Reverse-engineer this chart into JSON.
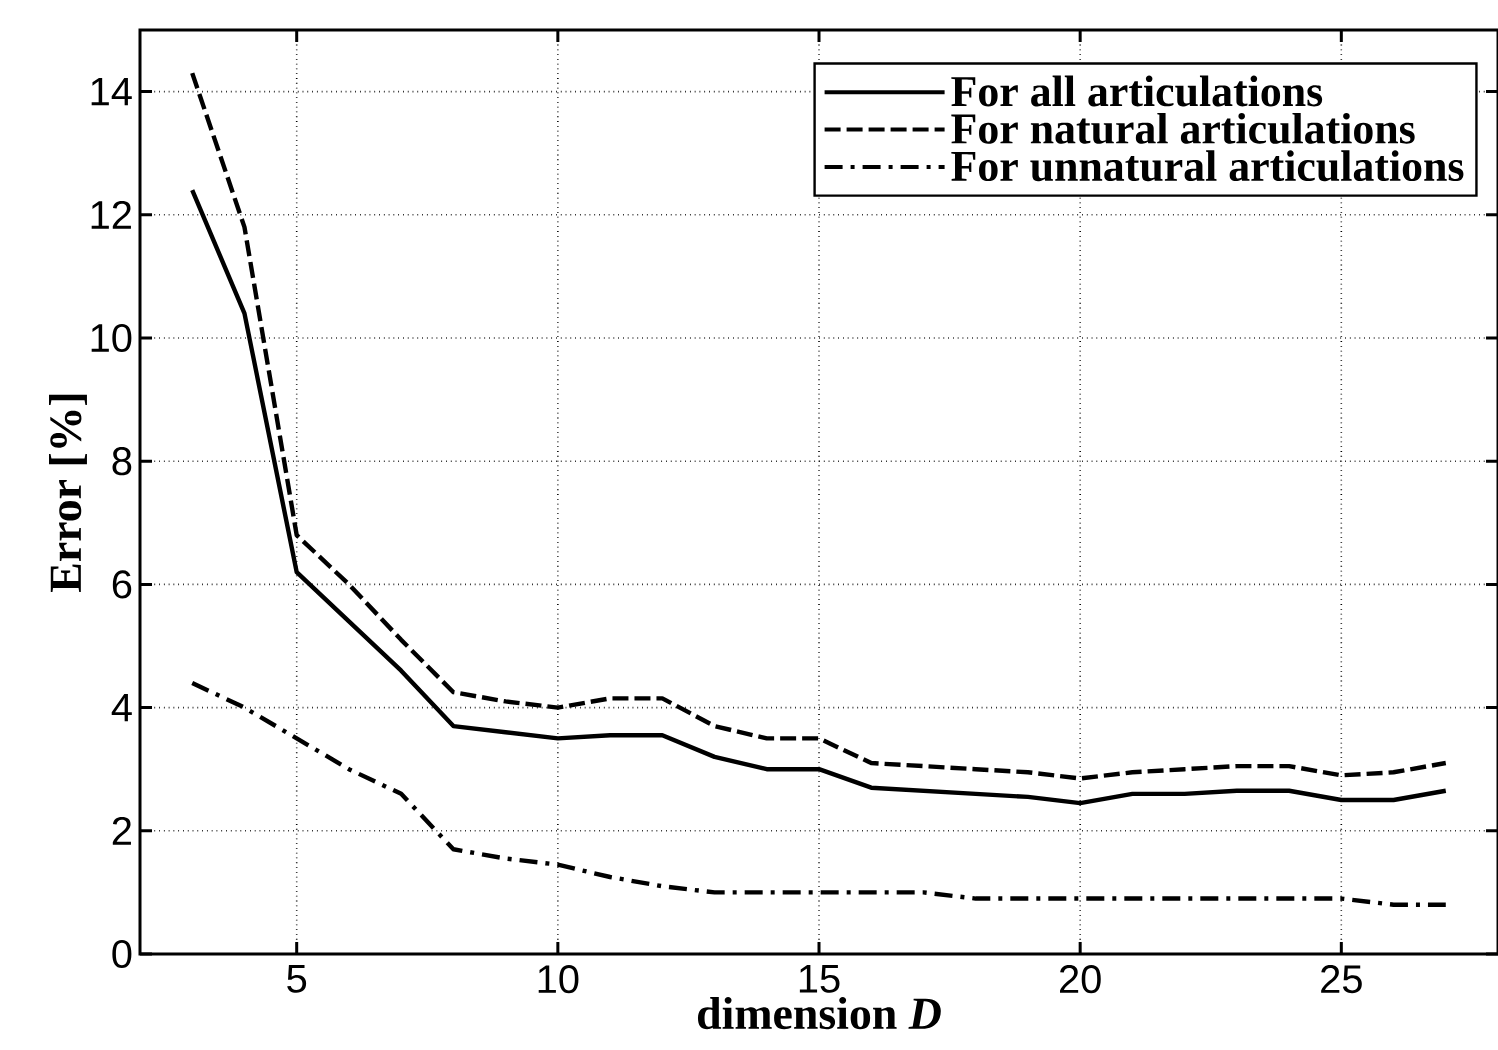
{
  "chart_data": {
    "type": "line",
    "xlabel": "dimension *D*",
    "ylabel": "Error [%]",
    "x": [
      3,
      4,
      5,
      6,
      7,
      8,
      9,
      10,
      11,
      12,
      13,
      14,
      15,
      16,
      17,
      18,
      19,
      20,
      21,
      22,
      23,
      24,
      25,
      26,
      27
    ],
    "series": [
      {
        "name": "For all articulations",
        "color": "#000000",
        "line_style": "solid",
        "values": [
          12.4,
          10.4,
          6.2,
          5.4,
          4.6,
          3.7,
          3.6,
          3.5,
          3.55,
          3.55,
          3.2,
          3.0,
          3.0,
          2.7,
          2.65,
          2.6,
          2.55,
          2.45,
          2.6,
          2.6,
          2.65,
          2.65,
          2.5,
          2.5,
          2.65
        ]
      },
      {
        "name": "For natural articulations",
        "color": "#000000",
        "line_style": "dashed",
        "values": [
          14.3,
          11.8,
          6.8,
          6.0,
          5.1,
          4.25,
          4.1,
          4.0,
          4.15,
          4.15,
          3.7,
          3.5,
          3.5,
          3.1,
          3.05,
          3.0,
          2.95,
          2.85,
          2.95,
          3.0,
          3.05,
          3.05,
          2.9,
          2.95,
          3.1
        ]
      },
      {
        "name": "For unnatural articulations",
        "color": "#000000",
        "line_style": "dashdot",
        "values": [
          4.4,
          4.0,
          3.5,
          3.0,
          2.6,
          1.7,
          1.55,
          1.45,
          1.25,
          1.1,
          1.0,
          1.0,
          1.0,
          1.0,
          1.0,
          0.9,
          0.9,
          0.9,
          0.9,
          0.9,
          0.9,
          0.9,
          0.9,
          0.8,
          0.8
        ]
      }
    ],
    "xlim": [
      2,
      28
    ],
    "ylim": [
      0,
      15
    ],
    "xticks": [
      5,
      10,
      15,
      20,
      25
    ],
    "yticks": [
      0,
      2,
      4,
      6,
      8,
      10,
      12,
      14
    ],
    "grid": true,
    "legend": "top right",
    "marker": "none"
  }
}
